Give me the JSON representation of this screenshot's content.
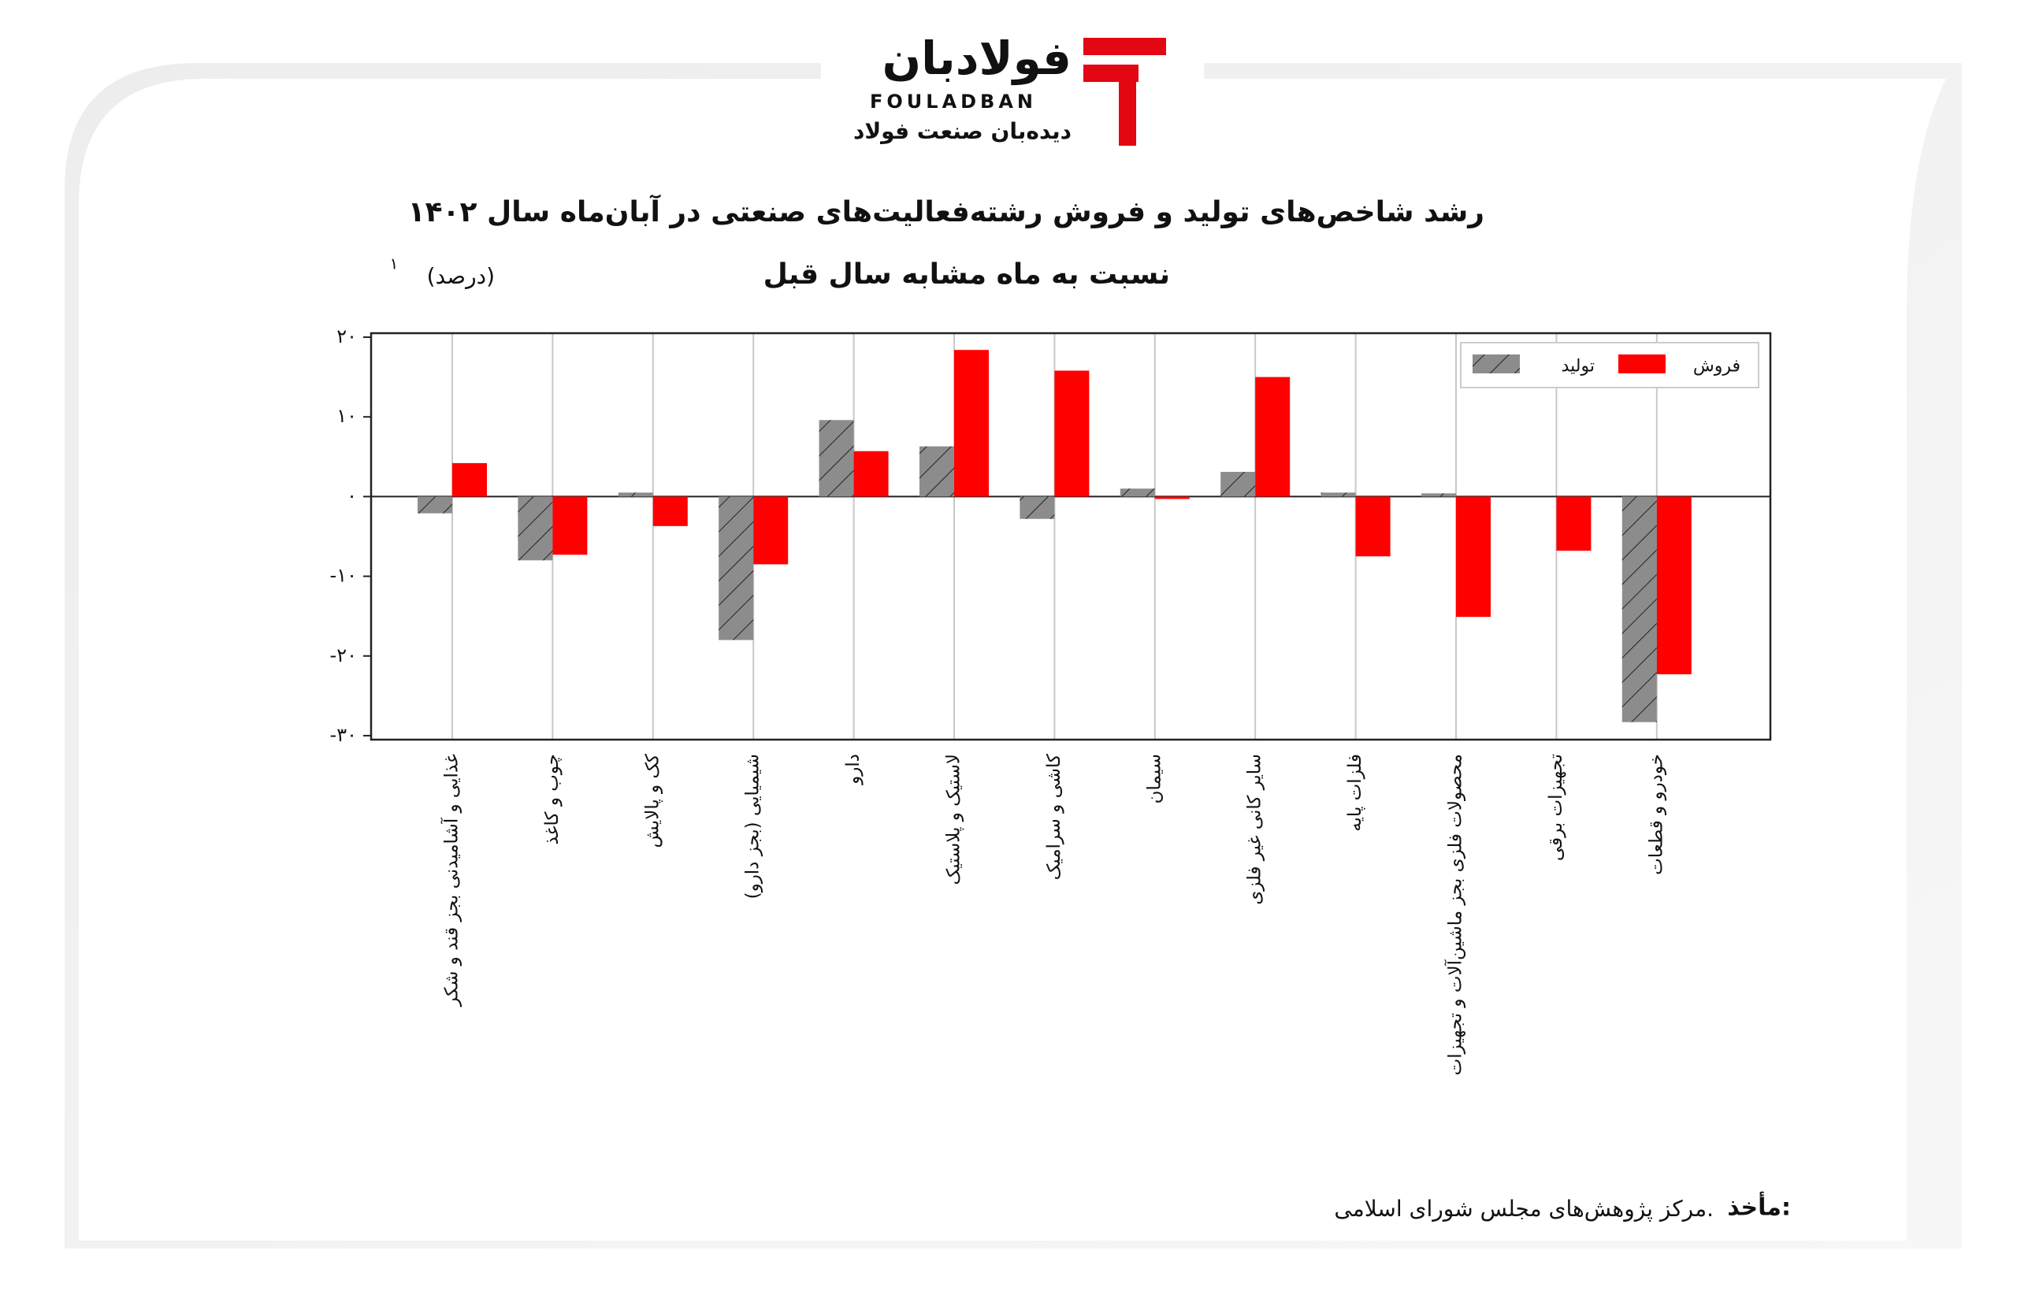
{
  "logo": {
    "name": "فولادبان",
    "latin": "FOULADBAN",
    "tagline": "دیده‌بان صنعت فولاد"
  },
  "chart_data": {
    "type": "bar",
    "title": "رشد شاخص‌های تولید و فروش رشته‌فعالیت‌های صنعتی در آبان‌ماه سال ۱۴۰۲",
    "subtitle": "نسبت به ماه مشابه سال قبل",
    "unit": "(درصد)",
    "unit_note": "۱",
    "categories": [
      "غذایی و آشامیدنی بجز قند و شکر",
      "چوب و کاغذ",
      "کک و پالایش",
      "شیمیایی (بجز دارو)",
      "دارو",
      "لاستیک و پلاستیک",
      "کاشی و سرامیک",
      "سیمان",
      "سایر کانی غیر فلزی",
      "فلزات پایه",
      "محصولات فلزی بجز ماشین‌آلات و تجهیزات",
      "تجهیزات برقی",
      "خودرو و قطعات"
    ],
    "series": [
      {
        "name": "تولید",
        "color": "#8c8c8c",
        "hatch": true,
        "values": [
          -2.1,
          -8.0,
          0.5,
          -18.0,
          9.6,
          6.3,
          -2.8,
          1.0,
          3.1,
          0.5,
          0.4,
          0,
          -28.3
        ]
      },
      {
        "name": "فروش",
        "color": "#ff0000",
        "hatch": false,
        "values": [
          4.2,
          -7.3,
          -3.7,
          -8.5,
          5.7,
          18.4,
          15.8,
          -0.3,
          15.0,
          -7.5,
          -15.1,
          -6.8,
          -22.3
        ]
      }
    ],
    "ylim": [
      -30.5,
      20.5
    ],
    "yticks": [
      {
        "value": -30,
        "label": "-۳۰"
      },
      {
        "value": -20,
        "label": "-۲۰"
      },
      {
        "value": -10,
        "label": "-۱۰"
      },
      {
        "value": 0,
        "label": "۰"
      },
      {
        "value": 10,
        "label": "۱۰"
      },
      {
        "value": 20,
        "label": "۲۰"
      }
    ],
    "grid": true,
    "legend": "upper right"
  },
  "source": {
    "label": "مأخذ:",
    "text": "مرکز پژوهش‌های مجلس شورای اسلامی."
  }
}
